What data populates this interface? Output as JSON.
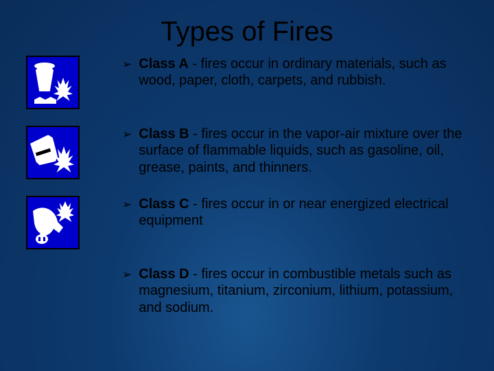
{
  "title": "Types of Fires",
  "bullet_glyph": "➢",
  "colors": {
    "background_center": "#1a5590",
    "background_edge": "#0a2d5a",
    "title_text": "#000000",
    "body_text": "#000000",
    "icon_bg": "#0000cc",
    "icon_fg": "#ffffff",
    "icon_border": "#000000"
  },
  "typography": {
    "title_fontsize": 40,
    "body_fontsize": 20,
    "bullet_fontsize": 17,
    "font_family": "Arial"
  },
  "items": [
    {
      "has_icon": true,
      "icon_name": "class-a-icon",
      "bold": "Class A",
      "rest": " - fires occur in ordinary materials, such as wood, paper, cloth, carpets, and rubbish."
    },
    {
      "has_icon": true,
      "icon_name": "class-b-icon",
      "bold": "Class B",
      "rest": " -  fires occur in the vapor-air mixture over the surface of flammable liquids, such as gasoline, oil, grease, paints, and thinners."
    },
    {
      "has_icon": true,
      "icon_name": "class-c-icon",
      "bold": "Class C",
      "rest": " - fires occur in or near energized electrical equipment"
    },
    {
      "has_icon": false,
      "icon_name": "",
      "bold": "Class D",
      "rest": " - fires occur in combustible metals such as magnesium, titanium, zirconium, lithium, potassium, and sodium."
    }
  ]
}
